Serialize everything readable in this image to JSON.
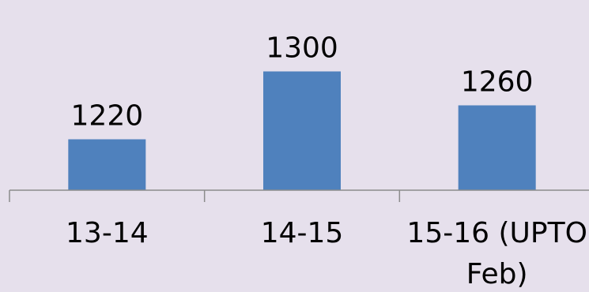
{
  "chart_data": {
    "type": "bar",
    "categories": [
      [
        "13-14"
      ],
      [
        "14-15"
      ],
      [
        "15-16 (UPTO",
        "Feb)"
      ]
    ],
    "values": [
      1220,
      1300,
      1260
    ],
    "data_labels": [
      "1220",
      "1300",
      "1260"
    ],
    "title": "",
    "xlabel": "",
    "ylabel": "",
    "ylim": [
      1160,
      1320
    ],
    "grid": false,
    "legend": "none",
    "bar_color": "#4f81bd",
    "axis_color": "#8c8c8c",
    "background_color": "#e6e0ec"
  }
}
